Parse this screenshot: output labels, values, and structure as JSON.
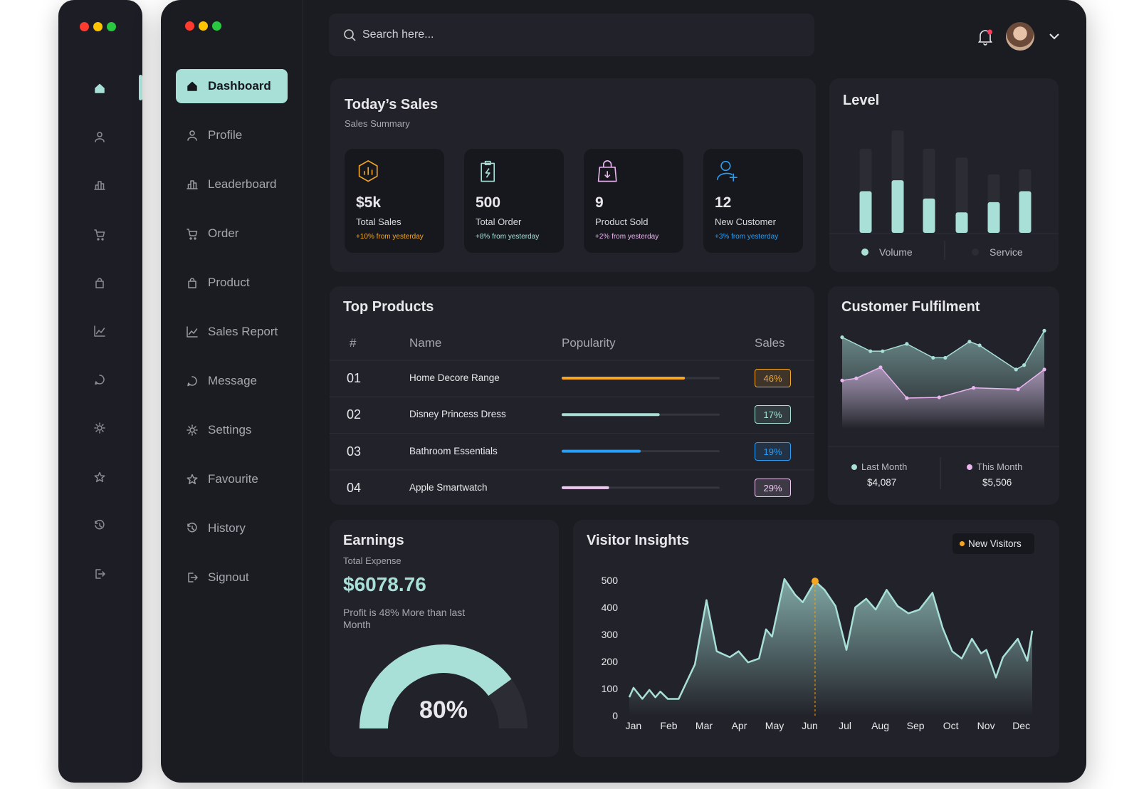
{
  "search": {
    "placeholder": "Search here..."
  },
  "nav": {
    "items": [
      "Dashboard",
      "Profile",
      "Leaderboard",
      "Order",
      "Product",
      "Sales Report",
      "Message",
      "Settings",
      "Favourite",
      "History",
      "Signout"
    ],
    "active": 0
  },
  "todays_sales": {
    "title": "Today’s Sales",
    "subtitle": "Sales Summary",
    "cards": [
      {
        "value": "$5k",
        "label": "Total Sales",
        "change": "+10% from yesterday",
        "color": "#f5a623"
      },
      {
        "value": "500",
        "label": "Total Order",
        "change": "+8% from yesterday",
        "color": "#a8e0d8"
      },
      {
        "value": "9",
        "label": "Product Sold",
        "change": "+2% from yesterday",
        "color": "#e9b6f0"
      },
      {
        "value": "12",
        "label": "New Customer",
        "change": "+3% from yesterday",
        "color": "#2a9df4"
      }
    ]
  },
  "level": {
    "type": "bar",
    "title": "Level",
    "categories": [
      null,
      null,
      null,
      null,
      null,
      null
    ],
    "series": [
      {
        "name": "Volume",
        "color": "#a8e0d8",
        "values": [
          57,
          72,
          47,
          28,
          42,
          57
        ]
      },
      {
        "name": "Service",
        "color": "#2b2c34",
        "values": [
          115,
          140,
          115,
          103,
          80,
          87
        ]
      }
    ],
    "ylim": [
      0,
      150
    ]
  },
  "top_products": {
    "title": "Top Products",
    "columns": [
      "#",
      "Name",
      "Popularity",
      "Sales"
    ],
    "popularity_lim": [
      0,
      100
    ],
    "rows": [
      {
        "rank": "01",
        "name": "Home Decore Range",
        "popularity": 78,
        "sales": "46%",
        "color": "#f5a623"
      },
      {
        "rank": "02",
        "name": "Disney Princess Dress",
        "popularity": 62,
        "sales": "17%",
        "color": "#a8e0d8"
      },
      {
        "rank": "03",
        "name": "Bathroom Essentials",
        "popularity": 50,
        "sales": "19%",
        "color": "#2a9df4"
      },
      {
        "rank": "04",
        "name": "Apple Smartwatch",
        "popularity": 30,
        "sales": "29%",
        "color": "#f0c8f4"
      }
    ]
  },
  "customer_fulfilment": {
    "type": "area",
    "title": "Customer Fulfilment",
    "xlim": [
      0,
      100
    ],
    "ylim": [
      0,
      140
    ],
    "series": [
      {
        "name": "Last Month",
        "color": "#a8e0d8",
        "total": "$4,087",
        "x": [
          0,
          14,
          20,
          32,
          45,
          51,
          63,
          68,
          86,
          90,
          100
        ],
        "values": [
          118,
          99,
          99,
          109,
          90,
          90,
          112,
          107,
          74,
          80,
          127
        ]
      },
      {
        "name": "This Month",
        "color": "#e9b6f0",
        "total": "$5,506",
        "x": [
          0,
          7,
          19,
          32,
          48,
          65,
          87,
          100
        ],
        "values": [
          59,
          62,
          77,
          35,
          36,
          49,
          47,
          74
        ]
      }
    ]
  },
  "earnings": {
    "title": "Earnings",
    "subtitle": "Total Expense",
    "amount": "$6078.76",
    "note": "Profit is 48% More than last Month",
    "gauge": {
      "value": 80,
      "label": "80%",
      "range": [
        0,
        100
      ],
      "color": "#a8e0d8"
    }
  },
  "visitor_insights": {
    "type": "area",
    "title": "Visitor Insights",
    "xlim": [
      -0.12,
      11.31
    ],
    "xticks": [
      {
        "value": 0,
        "label": "Jan"
      },
      {
        "value": 1,
        "label": "Feb"
      },
      {
        "value": 2,
        "label": "Mar"
      },
      {
        "value": 3,
        "label": "Apr"
      },
      {
        "value": 4,
        "label": "May"
      },
      {
        "value": 5,
        "label": "Jun"
      },
      {
        "value": 6,
        "label": "Jul"
      },
      {
        "value": 7,
        "label": "Aug"
      },
      {
        "value": 8,
        "label": "Sep"
      },
      {
        "value": 9,
        "label": "Oct"
      },
      {
        "value": 10,
        "label": "Nov"
      },
      {
        "value": 11,
        "label": "Dec"
      }
    ],
    "ylim": [
      0,
      500
    ],
    "yticks": [
      0,
      100,
      200,
      300,
      400,
      500
    ],
    "series": [
      {
        "name": "New Visitors",
        "color": "#a8e0d8",
        "x": [
          -0.12,
          0,
          0.25,
          0.45,
          0.62,
          0.76,
          0.97,
          1.28,
          1.74,
          2.07,
          2.36,
          2.73,
          2.98,
          3.25,
          3.56,
          3.76,
          3.93,
          4.28,
          4.59,
          4.8,
          5.15,
          5.42,
          5.73,
          6.04,
          6.29,
          6.6,
          6.87,
          7.18,
          7.49,
          7.8,
          8.11,
          8.48,
          8.77,
          9.04,
          9.31,
          9.6,
          9.86,
          10.01,
          10.28,
          10.48,
          10.9,
          11.17,
          11.31
        ],
        "values": [
          68,
          103,
          62,
          95,
          68,
          89,
          62,
          62,
          189,
          427,
          238,
          216,
          238,
          197,
          211,
          319,
          292,
          505,
          446,
          419,
          497,
          465,
          405,
          243,
          400,
          432,
          392,
          465,
          405,
          378,
          392,
          454,
          324,
          238,
          211,
          284,
          230,
          243,
          141,
          216,
          284,
          203,
          314
        ]
      }
    ],
    "highlight": {
      "index": 20,
      "color": "#f5a623"
    }
  }
}
